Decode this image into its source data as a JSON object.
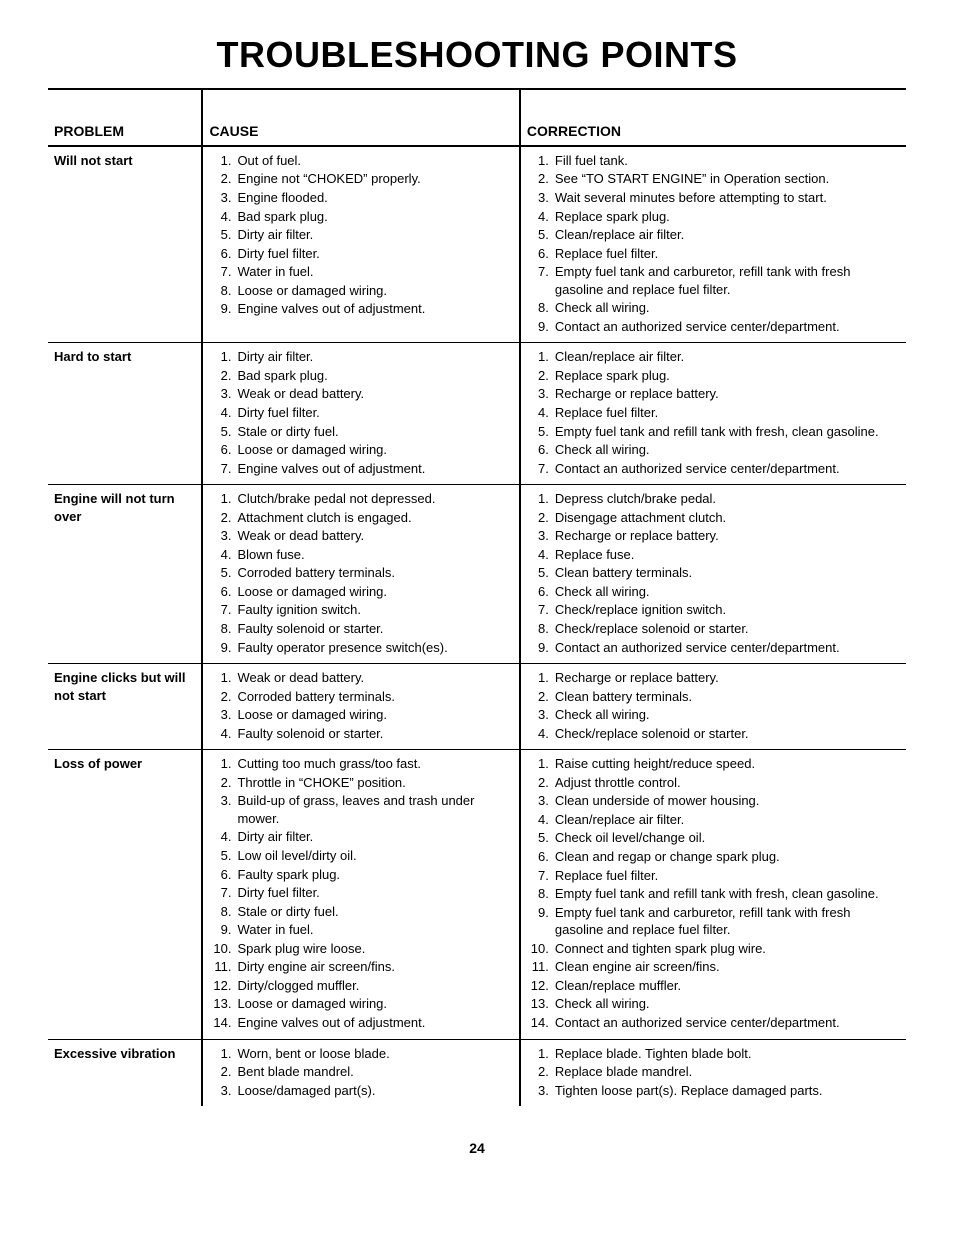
{
  "page": {
    "title": "TROUBLESHOOTING POINTS",
    "page_number": "24",
    "text_color": "#000000",
    "background_color": "#ffffff",
    "title_fontsize": 36,
    "body_fontsize": 13
  },
  "table": {
    "headers": {
      "problem": "PROBLEM",
      "cause": "CAUSE",
      "correction": "CORRECTION"
    },
    "rows": [
      {
        "problem": "Will not start",
        "causes": [
          "Out of fuel.",
          "Engine not “CHOKED” properly.",
          "Engine flooded.",
          "Bad spark plug.",
          "Dirty air filter.",
          "Dirty fuel filter.",
          "Water in fuel.",
          "Loose or damaged wiring.",
          "Engine valves out of adjustment."
        ],
        "corrections": [
          "Fill fuel tank.",
          "See “TO START ENGINE” in Operation section.",
          "Wait several minutes before attempting to start.",
          "Replace spark plug.",
          "Clean/replace air filter.",
          "Replace fuel filter.",
          "Empty fuel tank and carburetor, refill tank with fresh gasoline and replace fuel filter.",
          "Check all wiring.",
          "Contact an authorized service center/department."
        ]
      },
      {
        "problem": "Hard to start",
        "causes": [
          "Dirty air filter.",
          "Bad spark plug.",
          "Weak or dead battery.",
          "Dirty fuel filter.",
          "Stale or dirty fuel.",
          "Loose or damaged wiring.",
          "Engine valves out of adjustment."
        ],
        "corrections": [
          "Clean/replace air filter.",
          "Replace spark plug.",
          "Recharge or replace battery.",
          "Replace fuel filter.",
          "Empty fuel tank and refill tank with fresh, clean gasoline.",
          "Check all wiring.",
          "Contact an authorized service center/department."
        ]
      },
      {
        "problem": "Engine will not turn over",
        "causes": [
          "Clutch/brake pedal not depressed.",
          "Attachment clutch is engaged.",
          "Weak or dead battery.",
          "Blown fuse.",
          "Corroded battery terminals.",
          "Loose or damaged wiring.",
          "Faulty ignition switch.",
          "Faulty solenoid or starter.",
          "Faulty operator presence switch(es)."
        ],
        "corrections": [
          "Depress clutch/brake pedal.",
          "Disengage attachment clutch.",
          "Recharge or replace battery.",
          "Replace fuse.",
          "Clean battery terminals.",
          "Check all wiring.",
          "Check/replace ignition switch.",
          "Check/replace solenoid or starter.",
          "Contact an authorized service center/department."
        ]
      },
      {
        "problem": "Engine clicks but will not start",
        "causes": [
          "Weak or dead battery.",
          "Corroded battery terminals.",
          "Loose or damaged wiring.",
          "Faulty solenoid or starter."
        ],
        "corrections": [
          "Recharge or replace battery.",
          "Clean battery terminals.",
          "Check all wiring.",
          "Check/replace solenoid or starter."
        ]
      },
      {
        "problem": "Loss of power",
        "causes": [
          "Cutting too much grass/too fast.",
          "Throttle in “CHOKE” position.",
          "Build-up of grass, leaves and trash under mower.",
          "Dirty air filter.",
          "Low oil level/dirty oil.",
          "Faulty spark plug.",
          "Dirty fuel filter.",
          "Stale or dirty fuel.",
          "Water in fuel.",
          "Spark plug wire loose.",
          "Dirty engine air screen/fins.",
          "Dirty/clogged muffler.",
          "Loose or damaged wiring.",
          "Engine valves out of adjustment."
        ],
        "corrections": [
          "Raise cutting height/reduce speed.",
          "Adjust throttle control.",
          "Clean underside of mower housing.",
          "Clean/replace air filter.",
          "Check oil level/change oil.",
          "Clean and regap or change spark plug.",
          "Replace fuel filter.",
          "Empty fuel tank and refill tank with fresh, clean gasoline.",
          "Empty fuel tank and carburetor, refill tank with fresh gasoline and replace fuel filter.",
          "Connect and tighten spark plug wire.",
          "Clean engine air screen/fins.",
          "Clean/replace muffler.",
          "Check all wiring.",
          "Contact an authorized service center/department."
        ]
      },
      {
        "problem": "Excessive vibration",
        "causes": [
          "Worn, bent or loose blade.",
          "Bent blade mandrel.",
          "Loose/damaged part(s)."
        ],
        "corrections": [
          "Replace blade. Tighten blade bolt.",
          "Replace blade mandrel.",
          "Tighten loose part(s).  Replace damaged parts."
        ]
      }
    ]
  }
}
